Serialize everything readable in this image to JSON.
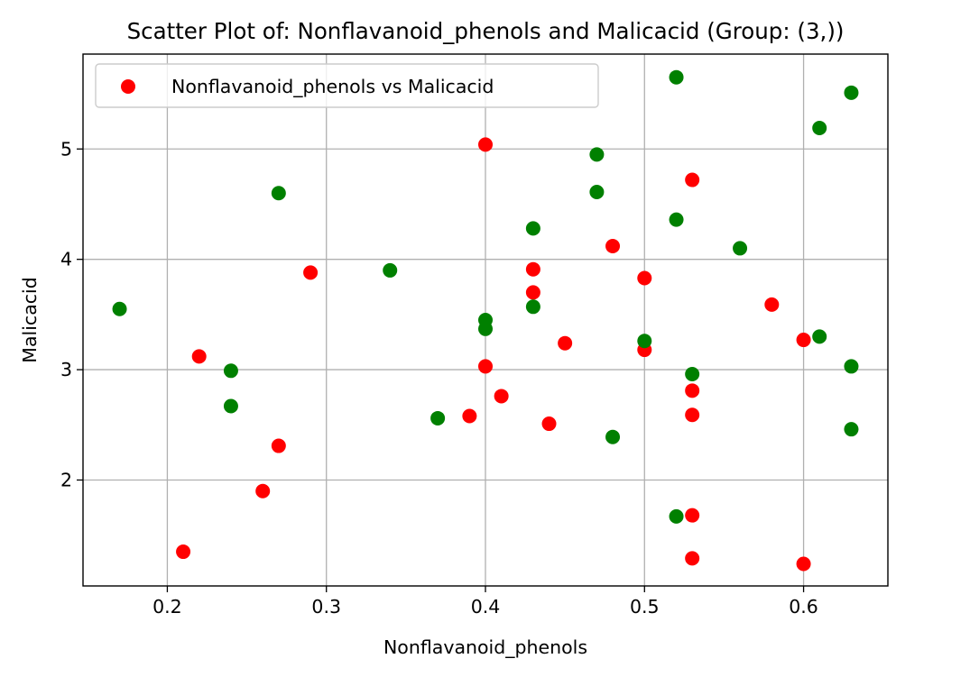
{
  "chart_data": {
    "type": "scatter",
    "title": "Scatter Plot of: Nonflavanoid_phenols and Malicacid (Group: (3,))",
    "xlabel": "Nonflavanoid_phenols",
    "ylabel": "Malicacid",
    "xlim": [
      0.147,
      0.653
    ],
    "ylim": [
      1.04,
      5.86
    ],
    "xticks": [
      0.2,
      0.3,
      0.4,
      0.5,
      0.6
    ],
    "xtick_labels": [
      "0.2",
      "0.3",
      "0.4",
      "0.5",
      "0.6"
    ],
    "yticks": [
      2,
      3,
      4,
      5
    ],
    "ytick_labels": [
      "2",
      "3",
      "4",
      "5"
    ],
    "grid": true,
    "legend": {
      "placement": "top-left",
      "entries": [
        {
          "label": "Nonflavanoid_phenols vs Malicacid",
          "color": "#ff0000"
        }
      ]
    },
    "series": [
      {
        "color": "#ff0000",
        "points": [
          [
            0.4,
            5.04
          ],
          [
            0.53,
            4.72
          ],
          [
            0.48,
            4.12
          ],
          [
            0.29,
            3.88
          ],
          [
            0.43,
            3.91
          ],
          [
            0.5,
            3.83
          ],
          [
            0.43,
            3.7
          ],
          [
            0.58,
            3.59
          ],
          [
            0.6,
            3.27
          ],
          [
            0.45,
            3.24
          ],
          [
            0.5,
            3.18
          ],
          [
            0.22,
            3.12
          ],
          [
            0.4,
            3.03
          ],
          [
            0.53,
            2.81
          ],
          [
            0.41,
            2.76
          ],
          [
            0.53,
            2.59
          ],
          [
            0.39,
            2.58
          ],
          [
            0.44,
            2.51
          ],
          [
            0.27,
            2.31
          ],
          [
            0.26,
            1.9
          ],
          [
            0.53,
            1.68
          ],
          [
            0.21,
            1.35
          ],
          [
            0.53,
            1.29
          ],
          [
            0.6,
            1.24
          ]
        ]
      },
      {
        "color": "#008000",
        "points": [
          [
            0.52,
            5.65
          ],
          [
            0.63,
            5.51
          ],
          [
            0.61,
            5.19
          ],
          [
            0.47,
            4.95
          ],
          [
            0.27,
            4.6
          ],
          [
            0.47,
            4.61
          ],
          [
            0.52,
            4.36
          ],
          [
            0.43,
            4.28
          ],
          [
            0.56,
            4.1
          ],
          [
            0.34,
            3.9
          ],
          [
            0.43,
            3.57
          ],
          [
            0.17,
            3.55
          ],
          [
            0.4,
            3.45
          ],
          [
            0.4,
            3.37
          ],
          [
            0.61,
            3.3
          ],
          [
            0.5,
            3.26
          ],
          [
            0.63,
            3.03
          ],
          [
            0.24,
            2.99
          ],
          [
            0.53,
            2.96
          ],
          [
            0.24,
            2.67
          ],
          [
            0.37,
            2.56
          ],
          [
            0.63,
            2.46
          ],
          [
            0.48,
            2.39
          ],
          [
            0.52,
            1.67
          ]
        ]
      }
    ]
  }
}
